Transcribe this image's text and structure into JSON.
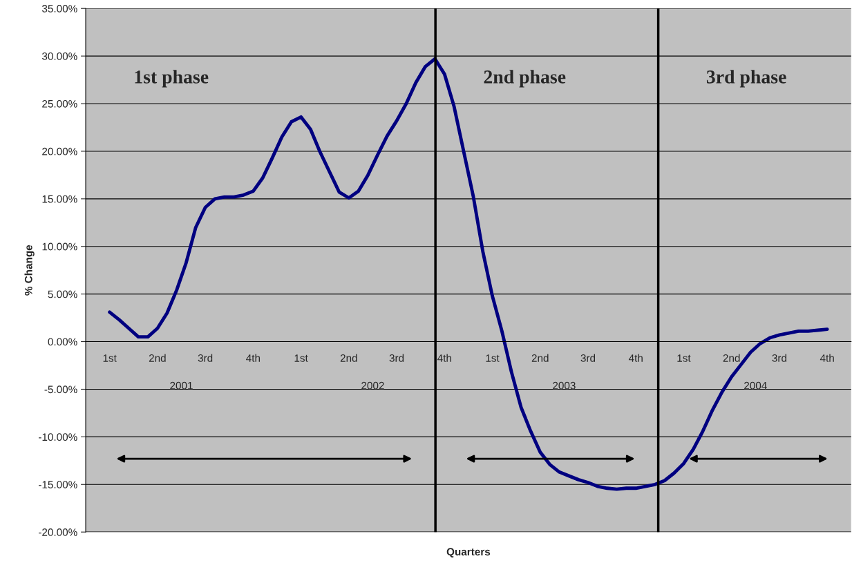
{
  "chart_data": {
    "type": "line",
    "xlabel": "Quarters",
    "ylabel": "% Change",
    "categories": [
      null,
      null,
      "1st",
      null,
      null,
      null,
      null,
      "2nd",
      null,
      null,
      null,
      null,
      "3rd",
      null,
      null,
      null,
      null,
      "4th",
      null,
      null,
      null,
      null,
      "1st",
      null,
      null,
      null,
      null,
      "2nd",
      null,
      null,
      null,
      null,
      "3rd",
      null,
      null,
      null,
      null,
      "4th",
      null,
      null,
      null,
      null,
      "1st",
      null,
      null,
      null,
      null,
      "2nd",
      null,
      null,
      null,
      null,
      "3rd",
      null,
      null,
      null,
      null,
      "4th",
      null,
      null,
      null,
      null,
      "1st",
      null,
      null,
      null,
      null,
      "2nd",
      null,
      null,
      null,
      null,
      "3rd",
      null,
      null,
      null,
      null,
      "4th",
      null,
      null
    ],
    "series": [
      {
        "color": "#000080",
        "values": [
          null,
          null,
          3.1,
          2.3,
          1.4,
          0.5,
          0.5,
          1.4,
          3.0,
          5.4,
          8.3,
          12.0,
          14.1,
          15.0,
          15.2,
          15.2,
          15.4,
          15.8,
          17.2,
          19.3,
          21.5,
          23.1,
          23.6,
          22.3,
          19.9,
          17.8,
          15.7,
          15.1,
          15.8,
          17.5,
          19.6,
          21.6,
          23.2,
          25.0,
          27.2,
          28.9,
          29.7,
          28.1,
          24.7,
          20.0,
          15.3,
          9.5,
          4.8,
          1.1,
          -3.2,
          -6.9,
          -9.4,
          -11.6,
          -12.9,
          -13.7,
          -14.1,
          -14.5,
          -14.8,
          -15.2,
          -15.4,
          -15.5,
          -15.4,
          -15.4,
          -15.2,
          -15.0,
          -14.6,
          -13.8,
          -12.8,
          -11.3,
          -9.4,
          -7.2,
          -5.3,
          -3.7,
          -2.4,
          -1.1,
          -0.2,
          0.4,
          0.7,
          0.9,
          1.1,
          1.1,
          1.2,
          1.3,
          null,
          null
        ]
      }
    ],
    "ylim": [
      -20,
      35
    ],
    "yticks": [
      {
        "value": -20,
        "label": "-20.00%"
      },
      {
        "value": -15,
        "label": "-15.00%"
      },
      {
        "value": -10,
        "label": "-10.00%"
      },
      {
        "value": -5,
        "label": "-5.00%"
      },
      {
        "value": 0,
        "label": "0.00%"
      },
      {
        "value": 5,
        "label": "5.00%"
      },
      {
        "value": 10,
        "label": "10.00%"
      },
      {
        "value": 15,
        "label": "15.00%"
      },
      {
        "value": 20,
        "label": "20.00%"
      },
      {
        "value": 25,
        "label": "25.00%"
      },
      {
        "value": 30,
        "label": "30.00%"
      },
      {
        "value": 35,
        "label": "35.00%"
      }
    ],
    "grid": "y",
    "marker": "none",
    "line_style": "solid",
    "annotations": [
      "1st phase",
      "2nd phase",
      "3rd phase",
      "2001",
      "2002",
      "2003",
      "2004"
    ]
  }
}
